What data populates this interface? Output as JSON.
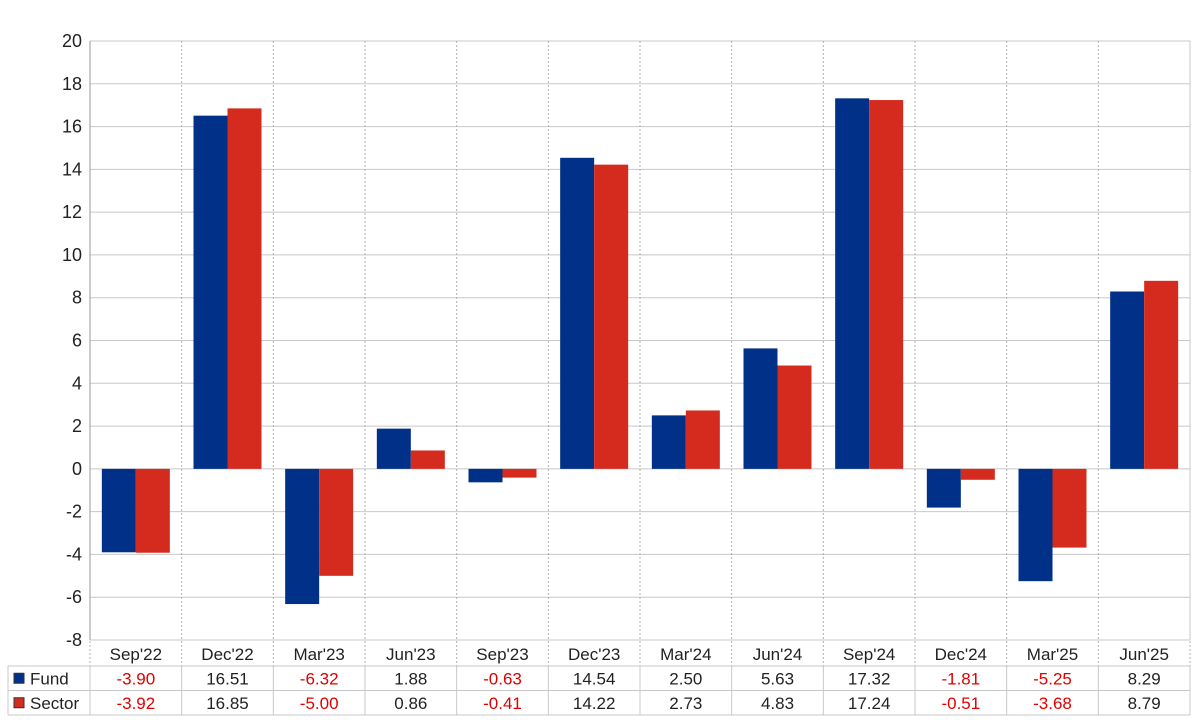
{
  "colors": {
    "fund": "#003087",
    "sector": "#d52b1e",
    "negative_text": "#e00000",
    "positive_text": "#222222",
    "grid": "#c8c8c8"
  },
  "chart_data": {
    "type": "bar",
    "title": "",
    "xlabel": "",
    "ylabel": "",
    "ylim": [
      -8,
      20
    ],
    "yticks": [
      -8,
      -6,
      -4,
      -2,
      0,
      2,
      4,
      6,
      8,
      10,
      12,
      14,
      16,
      18,
      20
    ],
    "grid": true,
    "legend": "table-bottom",
    "categories": [
      "Sep'22",
      "Dec'22",
      "Mar'23",
      "Jun'23",
      "Sep'23",
      "Dec'23",
      "Mar'24",
      "Jun'24",
      "Sep'24",
      "Dec'24",
      "Mar'25",
      "Jun'25"
    ],
    "series": [
      {
        "name": "Fund",
        "values": [
          -3.9,
          16.51,
          -6.32,
          1.88,
          -0.63,
          14.54,
          2.5,
          5.63,
          17.32,
          -1.81,
          -5.25,
          8.29
        ],
        "labels": [
          "-3.90",
          "16.51",
          "-6.32",
          "1.88",
          "-0.63",
          "14.54",
          "2.50",
          "5.63",
          "17.32",
          "-1.81",
          "-5.25",
          "8.29"
        ]
      },
      {
        "name": "Sector",
        "values": [
          -3.92,
          16.85,
          -5.0,
          0.86,
          -0.41,
          14.22,
          2.73,
          4.83,
          17.24,
          -0.51,
          -3.68,
          8.79
        ],
        "labels": [
          "-3.92",
          "16.85",
          "-5.00",
          "0.86",
          "-0.41",
          "14.22",
          "2.73",
          "4.83",
          "17.24",
          "-0.51",
          "-3.68",
          "8.79"
        ]
      }
    ]
  }
}
